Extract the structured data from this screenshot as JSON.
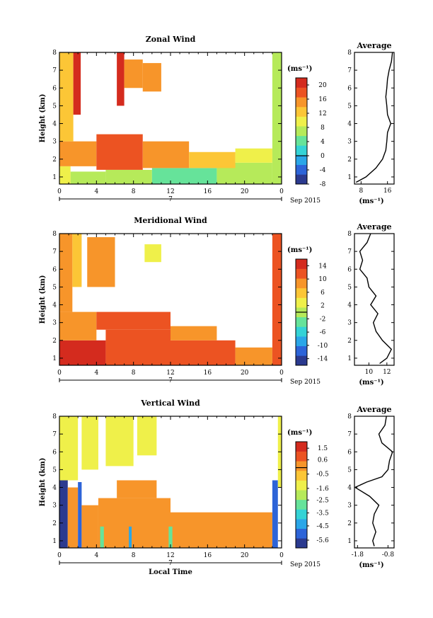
{
  "figure": {
    "x_label": "Local Time",
    "date_label": "Sep 2015",
    "day_label": "7",
    "y_label": "Height (km)",
    "unit_label": "(ms⁻¹)"
  },
  "chart_data": [
    {
      "type": "heatmap",
      "title": "Zonal Wind",
      "xlabel": "",
      "ylabel": "Height (km)",
      "x_ticks": [
        "0",
        "4",
        "8",
        "12",
        "16",
        "20",
        "0"
      ],
      "xlim": [
        0,
        24
      ],
      "y_ticks": [
        "1",
        "2",
        "3",
        "4",
        "5",
        "6",
        "7",
        "8"
      ],
      "ylim": [
        0.6,
        8
      ],
      "colorbar": {
        "label": "(ms⁻¹)",
        "ticks": [
          "20",
          "16",
          "12",
          "8",
          "4",
          "0",
          "-4",
          "-8"
        ],
        "range": [
          -8,
          22
        ]
      },
      "cells": [
        {
          "t0": 0.0,
          "t1": 1.2,
          "h0": 0.6,
          "h1": 1.6,
          "v": 10
        },
        {
          "t0": 1.2,
          "t1": 5.0,
          "h0": 0.6,
          "h1": 1.3,
          "v": 8
        },
        {
          "t0": 5.0,
          "t1": 10.0,
          "h0": 0.6,
          "h1": 1.4,
          "v": 6
        },
        {
          "t0": 10.0,
          "t1": 17.0,
          "h0": 0.6,
          "h1": 1.5,
          "v": 3
        },
        {
          "t0": 17.0,
          "t1": 23.0,
          "h0": 0.6,
          "h1": 1.8,
          "v": 6
        },
        {
          "t0": 0.0,
          "t1": 4.0,
          "h0": 1.6,
          "h1": 3.0,
          "v": 15
        },
        {
          "t0": 4.0,
          "t1": 9.0,
          "h0": 1.4,
          "h1": 3.4,
          "v": 17
        },
        {
          "t0": 9.0,
          "t1": 14.0,
          "h0": 1.5,
          "h1": 3.0,
          "v": 16
        },
        {
          "t0": 14.0,
          "t1": 19.0,
          "h0": 1.5,
          "h1": 2.4,
          "v": 13
        },
        {
          "t0": 19.0,
          "t1": 23.0,
          "h0": 1.8,
          "h1": 2.6,
          "v": 11
        },
        {
          "t0": 0.0,
          "t1": 1.5,
          "h0": 3.0,
          "h1": 8.0,
          "v": 12
        },
        {
          "t0": 1.5,
          "t1": 2.3,
          "h0": 4.5,
          "h1": 8.0,
          "v": 20
        },
        {
          "t0": 6.2,
          "t1": 7.0,
          "h0": 5.0,
          "h1": 8.0,
          "v": 20
        },
        {
          "t0": 7.0,
          "t1": 9.0,
          "h0": 6.0,
          "h1": 7.6,
          "v": 14
        },
        {
          "t0": 9.0,
          "t1": 11.0,
          "h0": 5.8,
          "h1": 7.4,
          "v": 15
        },
        {
          "t0": 23.0,
          "t1": 24.0,
          "h0": 0.6,
          "h1": 8.0,
          "v": 8
        }
      ],
      "profile": {
        "title": "Average",
        "x_ticks": [
          "8",
          "16"
        ],
        "xlim": [
          6,
          18
        ],
        "xlabel": "(ms⁻¹)",
        "h": [
          0.7,
          1.0,
          1.5,
          2.0,
          2.5,
          3.0,
          3.5,
          4.0,
          4.5,
          5.0,
          5.5,
          6.0,
          6.5,
          7.0,
          7.5,
          8.0
        ],
        "v": [
          6.5,
          9.5,
          12.5,
          14.5,
          15.5,
          15.8,
          16.0,
          17.0,
          16.0,
          15.8,
          15.5,
          15.8,
          16.0,
          16.5,
          17.2,
          17.5
        ]
      }
    },
    {
      "type": "heatmap",
      "title": "Meridional Wind",
      "xlabel": "",
      "ylabel": "Height (km)",
      "x_ticks": [
        "0",
        "4",
        "8",
        "12",
        "16",
        "20",
        "0"
      ],
      "xlim": [
        0,
        24
      ],
      "y_ticks": [
        "1",
        "2",
        "3",
        "4",
        "5",
        "6",
        "7",
        "8"
      ],
      "ylim": [
        0.6,
        8
      ],
      "colorbar": {
        "label": "(ms⁻¹)",
        "ticks": [
          "14",
          "10",
          "6",
          "2",
          "-2",
          "-6",
          "-10",
          "-14"
        ],
        "range": [
          -16,
          16
        ]
      },
      "cells": [
        {
          "t0": 0.0,
          "t1": 5.0,
          "h0": 0.6,
          "h1": 2.0,
          "v": 14
        },
        {
          "t0": 5.0,
          "t1": 12.0,
          "h0": 0.6,
          "h1": 2.6,
          "v": 13
        },
        {
          "t0": 12.0,
          "t1": 19.0,
          "h0": 0.6,
          "h1": 2.0,
          "v": 12
        },
        {
          "t0": 19.0,
          "t1": 23.0,
          "h0": 0.6,
          "h1": 1.6,
          "v": 9
        },
        {
          "t0": 0.0,
          "t1": 4.0,
          "h0": 2.0,
          "h1": 3.6,
          "v": 10
        },
        {
          "t0": 4.0,
          "t1": 12.0,
          "h0": 2.6,
          "h1": 3.6,
          "v": 11
        },
        {
          "t0": 12.0,
          "t1": 17.0,
          "h0": 2.0,
          "h1": 2.8,
          "v": 9
        },
        {
          "t0": 0.0,
          "t1": 1.4,
          "h0": 3.6,
          "h1": 8.0,
          "v": 8
        },
        {
          "t0": 1.4,
          "t1": 2.4,
          "h0": 5.0,
          "h1": 8.0,
          "v": 6
        },
        {
          "t0": 3.0,
          "t1": 6.0,
          "h0": 5.0,
          "h1": 7.8,
          "v": 9
        },
        {
          "t0": 9.2,
          "t1": 11.0,
          "h0": 6.4,
          "h1": 7.4,
          "v": 4
        },
        {
          "t0": 23.0,
          "t1": 24.0,
          "h0": 0.6,
          "h1": 8.0,
          "v": 13
        }
      ],
      "profile": {
        "title": "Average",
        "x_ticks": [
          "10",
          "12"
        ],
        "xlim": [
          8.4,
          12.8
        ],
        "xlabel": "(ms⁻¹)",
        "h": [
          0.7,
          1.0,
          1.5,
          2.0,
          2.5,
          3.0,
          3.5,
          4.0,
          4.5,
          5.0,
          5.5,
          6.0,
          6.5,
          7.0,
          7.5,
          8.0
        ],
        "v": [
          11.2,
          12.0,
          12.5,
          11.5,
          10.8,
          10.5,
          11.0,
          10.2,
          10.8,
          10.0,
          9.8,
          9.0,
          9.3,
          9.0,
          9.8,
          10.2
        ]
      }
    },
    {
      "type": "heatmap",
      "title": "Vertical Wind",
      "xlabel": "Local Time",
      "ylabel": "Height (km)",
      "x_ticks": [
        "0",
        "4",
        "8",
        "12",
        "16",
        "20",
        "0"
      ],
      "xlim": [
        0,
        24
      ],
      "y_ticks": [
        "1",
        "2",
        "3",
        "4",
        "5",
        "6",
        "7",
        "8"
      ],
      "ylim": [
        0.6,
        8
      ],
      "colorbar": {
        "label": "(ms⁻¹)",
        "ticks": [
          "1.5",
          "0.6",
          "-0.5",
          "-1.6",
          "-2.5",
          "-3.5",
          "-4.5",
          "-5.6"
        ],
        "range": [
          -6.2,
          2.0
        ]
      },
      "cells": [
        {
          "t0": 0.0,
          "t1": 0.9,
          "h0": 0.6,
          "h1": 4.4,
          "v": -5.6
        },
        {
          "t0": 0.9,
          "t1": 2.0,
          "h0": 0.6,
          "h1": 4.0,
          "v": 0.2
        },
        {
          "t0": 2.0,
          "t1": 2.4,
          "h0": 0.6,
          "h1": 4.3,
          "v": -5.0
        },
        {
          "t0": 2.4,
          "t1": 4.2,
          "h0": 0.6,
          "h1": 3.0,
          "v": 0.0
        },
        {
          "t0": 4.2,
          "t1": 12.0,
          "h0": 0.6,
          "h1": 3.4,
          "v": 0.4
        },
        {
          "t0": 12.0,
          "t1": 23.0,
          "h0": 0.6,
          "h1": 2.6,
          "v": 0.2
        },
        {
          "t0": 6.2,
          "t1": 10.5,
          "h0": 3.4,
          "h1": 4.4,
          "v": -0.2
        },
        {
          "t0": 0.0,
          "t1": 2.0,
          "h0": 4.4,
          "h1": 8.0,
          "v": -1.3
        },
        {
          "t0": 2.4,
          "t1": 4.2,
          "h0": 5.0,
          "h1": 8.0,
          "v": -1.6
        },
        {
          "t0": 5.0,
          "t1": 8.0,
          "h0": 5.2,
          "h1": 8.0,
          "v": -1.4
        },
        {
          "t0": 8.4,
          "t1": 10.5,
          "h0": 5.8,
          "h1": 8.0,
          "v": -1.2
        },
        {
          "t0": 4.4,
          "t1": 4.8,
          "h0": 0.6,
          "h1": 1.8,
          "v": -3.0
        },
        {
          "t0": 7.5,
          "t1": 7.8,
          "h0": 0.6,
          "h1": 1.8,
          "v": -4.0
        },
        {
          "t0": 11.8,
          "t1": 12.2,
          "h0": 0.6,
          "h1": 1.8,
          "v": -3.2
        },
        {
          "t0": 23.0,
          "t1": 23.6,
          "h0": 0.6,
          "h1": 4.4,
          "v": -5.4
        },
        {
          "t0": 23.6,
          "t1": 24.0,
          "h0": 4.0,
          "h1": 8.0,
          "v": -1.0
        }
      ],
      "profile": {
        "title": "Average",
        "x_ticks": [
          "-1.8",
          "-0.8"
        ],
        "xlim": [
          -1.9,
          -0.6
        ],
        "xlabel": "(ms⁻¹)",
        "h": [
          0.7,
          1.0,
          1.5,
          2.0,
          2.5,
          3.0,
          3.5,
          4.0,
          4.3,
          4.6,
          5.0,
          5.5,
          6.0,
          6.5,
          7.0,
          7.5,
          8.0
        ],
        "v": [
          -1.25,
          -1.3,
          -1.2,
          -1.3,
          -1.25,
          -1.1,
          -1.4,
          -1.88,
          -1.5,
          -1.0,
          -0.8,
          -0.75,
          -0.65,
          -1.0,
          -1.1,
          -0.9,
          -0.85
        ]
      }
    }
  ]
}
